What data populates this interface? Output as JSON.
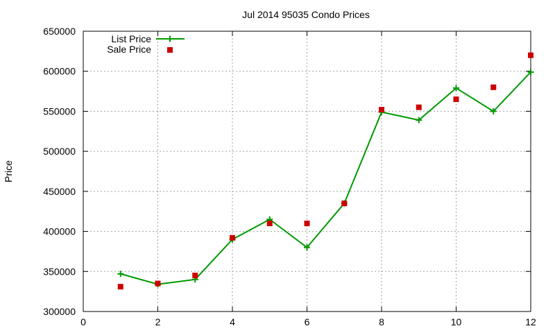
{
  "chart_data": {
    "type": "line",
    "title": "Jul 2014 95035 Condo Prices",
    "xlabel": "",
    "ylabel": "Price",
    "xlim": [
      0,
      12
    ],
    "ylim": [
      300000,
      650000
    ],
    "xticks": [
      "0",
      "2",
      "4",
      "6",
      "8",
      "10",
      "12"
    ],
    "yticks": [
      "300000",
      "350000",
      "400000",
      "450000",
      "500000",
      "550000",
      "600000",
      "650000"
    ],
    "grid": true,
    "legend_position": "top-left",
    "series": [
      {
        "name": "List Price",
        "style": "line-with-plus-markers",
        "color": "#009900",
        "x": [
          1,
          2,
          3,
          4,
          5,
          6,
          7,
          8,
          9,
          10,
          11,
          12
        ],
        "y": [
          347000,
          334000,
          340000,
          390000,
          415000,
          380000,
          435000,
          549000,
          539000,
          579000,
          550000,
          599000
        ]
      },
      {
        "name": "Sale Price",
        "style": "square-markers",
        "color": "#cc0000",
        "x": [
          1,
          2,
          3,
          4,
          5,
          6,
          7,
          8,
          9,
          10,
          11,
          12
        ],
        "y": [
          331000,
          335000,
          345000,
          392000,
          410000,
          410000,
          435000,
          552000,
          555000,
          565000,
          580000,
          620000
        ]
      }
    ]
  }
}
